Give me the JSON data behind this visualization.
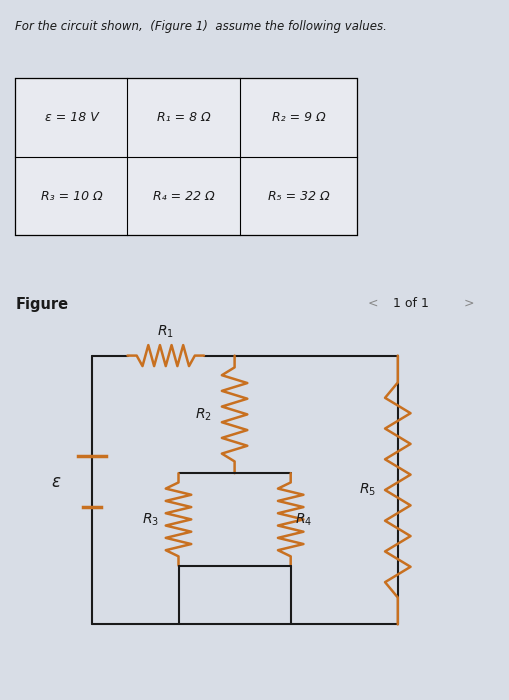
{
  "title_text": "For the circuit shown, (Figure 1) assume the following values.",
  "table_data": [
    [
      "ε = 18 V",
      "R₁ = 8 Ω",
      "R₂ = 9 Ω"
    ],
    [
      "R₃ = 10 Ω",
      "R₄ = 22 Ω",
      "R₅ = 32 Ω"
    ]
  ],
  "figure_label": "Figure",
  "figure_nav": "1 of 1",
  "bg_color": "#d8dde6",
  "wire_color": "#1a1a1a",
  "resistor_color": "#c87020",
  "text_color": "#1a1a1a",
  "table_bg": "#e8eaf0",
  "nav_color": "#888888",
  "link_color": "#2244aa"
}
